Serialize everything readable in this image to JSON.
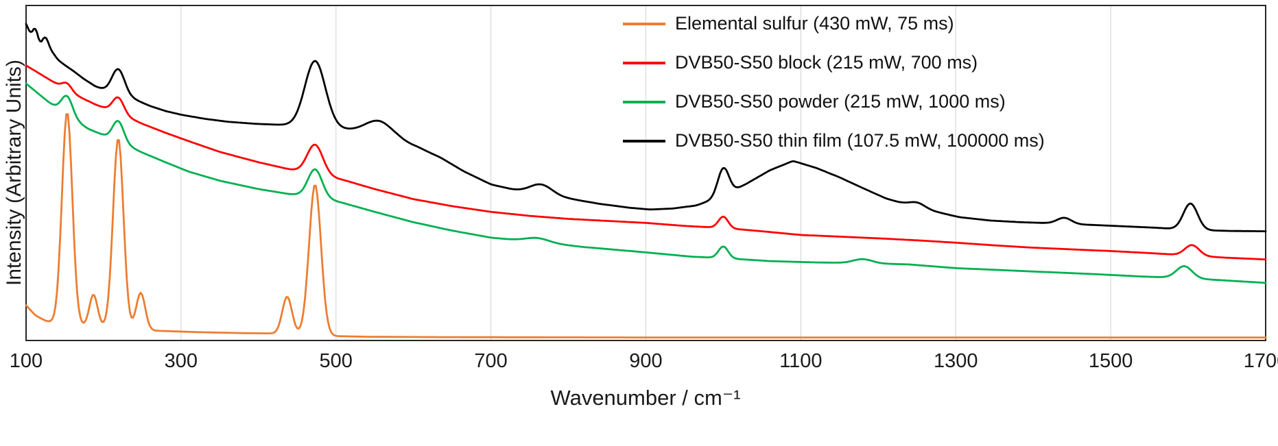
{
  "chart_data": {
    "type": "line",
    "chart_kind": "raman-spectra-overlay",
    "title": "",
    "xlabel": "Wavenumber / cm⁻¹",
    "ylabel": "Intensity (Arbitrary Units)",
    "xlim": [
      100,
      1700
    ],
    "x_ticks": [
      100,
      300,
      500,
      700,
      900,
      1100,
      1300,
      1500,
      1700
    ],
    "ylim": [
      0,
      1
    ],
    "y_ticks": [],
    "grid": "vertical gridlines only",
    "grid_color": "#d9d9d9",
    "axis_color": "#262626",
    "legend_position": "top-right inside plot",
    "intensity_note": "y values are normalized arbitrary intensity (0 = x-axis, 1 = top of plot); each spectrum = interpolated baseline points [wavenumber, intensity] plus Gaussian peaks {center cm⁻¹, height, sigma cm⁻¹}",
    "series": [
      {
        "name": "Elemental sulfur (430 mW, 75 ms)",
        "color": "#ED7D31",
        "baseline": [
          [
            100,
            0.105
          ],
          [
            112,
            0.075
          ],
          [
            126,
            0.058
          ],
          [
            140,
            0.05
          ],
          [
            172,
            0.044
          ],
          [
            205,
            0.04
          ],
          [
            236,
            0.034
          ],
          [
            270,
            0.029
          ],
          [
            320,
            0.025
          ],
          [
            380,
            0.022
          ],
          [
            420,
            0.021
          ],
          [
            452,
            0.019
          ],
          [
            500,
            0.013
          ],
          [
            545,
            0.011
          ],
          [
            640,
            0.01
          ],
          [
            900,
            0.009
          ],
          [
            1300,
            0.009
          ],
          [
            1700,
            0.009
          ]
        ],
        "peaks": [
          {
            "center": 153,
            "height": 0.655,
            "sigma": 6.5
          },
          {
            "center": 187,
            "height": 0.1,
            "sigma": 5
          },
          {
            "center": 219,
            "height": 0.585,
            "sigma": 6.5
          },
          {
            "center": 248,
            "height": 0.115,
            "sigma": 5.5
          },
          {
            "center": 437,
            "height": 0.115,
            "sigma": 6
          },
          {
            "center": 473,
            "height": 0.46,
            "sigma": 7.5
          }
        ]
      },
      {
        "name": "DVB50-S50 block (215 mW, 700 ms)",
        "color": "#FF0000",
        "baseline": [
          [
            100,
            0.821
          ],
          [
            130,
            0.779
          ],
          [
            160,
            0.737
          ],
          [
            190,
            0.704
          ],
          [
            220,
            0.678
          ],
          [
            250,
            0.647
          ],
          [
            280,
            0.62
          ],
          [
            310,
            0.595
          ],
          [
            350,
            0.563
          ],
          [
            400,
            0.532
          ],
          [
            440,
            0.511
          ],
          [
            475,
            0.497
          ],
          [
            510,
            0.479
          ],
          [
            550,
            0.452
          ],
          [
            600,
            0.422
          ],
          [
            650,
            0.401
          ],
          [
            700,
            0.384
          ],
          [
            750,
            0.372
          ],
          [
            800,
            0.363
          ],
          [
            850,
            0.357
          ],
          [
            900,
            0.351
          ],
          [
            950,
            0.342
          ],
          [
            1000,
            0.336
          ],
          [
            1050,
            0.326
          ],
          [
            1100,
            0.315
          ],
          [
            1150,
            0.31
          ],
          [
            1200,
            0.305
          ],
          [
            1250,
            0.299
          ],
          [
            1300,
            0.292
          ],
          [
            1350,
            0.284
          ],
          [
            1400,
            0.277
          ],
          [
            1450,
            0.272
          ],
          [
            1500,
            0.267
          ],
          [
            1550,
            0.261
          ],
          [
            1600,
            0.254
          ],
          [
            1650,
            0.247
          ],
          [
            1700,
            0.242
          ]
        ],
        "peaks": [
          {
            "center": 153,
            "height": 0.022,
            "sigma": 6
          },
          {
            "center": 219,
            "height": 0.048,
            "sigma": 7
          },
          {
            "center": 473,
            "height": 0.088,
            "sigma": 10
          },
          {
            "center": 1000,
            "height": 0.035,
            "sigma": 6
          },
          {
            "center": 1605,
            "height": 0.032,
            "sigma": 9
          }
        ]
      },
      {
        "name": "DVB50-S50 powder (215 mW, 1000 ms)",
        "color": "#00B050",
        "baseline": [
          [
            100,
            0.767
          ],
          [
            130,
            0.71
          ],
          [
            155,
            0.67
          ],
          [
            180,
            0.632
          ],
          [
            220,
            0.594
          ],
          [
            250,
            0.561
          ],
          [
            280,
            0.532
          ],
          [
            310,
            0.504
          ],
          [
            350,
            0.477
          ],
          [
            400,
            0.452
          ],
          [
            440,
            0.437
          ],
          [
            475,
            0.43
          ],
          [
            510,
            0.41
          ],
          [
            550,
            0.384
          ],
          [
            600,
            0.353
          ],
          [
            650,
            0.328
          ],
          [
            700,
            0.307
          ],
          [
            760,
            0.294
          ],
          [
            820,
            0.279
          ],
          [
            900,
            0.263
          ],
          [
            960,
            0.25
          ],
          [
            1000,
            0.246
          ],
          [
            1060,
            0.237
          ],
          [
            1120,
            0.233
          ],
          [
            1180,
            0.231
          ],
          [
            1240,
            0.227
          ],
          [
            1300,
            0.216
          ],
          [
            1360,
            0.21
          ],
          [
            1420,
            0.204
          ],
          [
            1480,
            0.198
          ],
          [
            1540,
            0.191
          ],
          [
            1590,
            0.187
          ],
          [
            1650,
            0.179
          ],
          [
            1700,
            0.172
          ]
        ],
        "peaks": [
          {
            "center": 153,
            "height": 0.058,
            "sigma": 7
          },
          {
            "center": 219,
            "height": 0.062,
            "sigma": 7
          },
          {
            "center": 473,
            "height": 0.082,
            "sigma": 9
          },
          {
            "center": 760,
            "height": 0.012,
            "sigma": 15
          },
          {
            "center": 1000,
            "height": 0.036,
            "sigma": 6
          },
          {
            "center": 1180,
            "height": 0.012,
            "sigma": 12
          },
          {
            "center": 1595,
            "height": 0.036,
            "sigma": 10
          }
        ]
      },
      {
        "name": "DVB50-S50 thin film (107.5 mW, 100000 ms)",
        "color": "#000000",
        "baseline": [
          [
            100,
            0.945
          ],
          [
            106,
            0.915
          ],
          [
            112,
            0.938
          ],
          [
            118,
            0.885
          ],
          [
            125,
            0.912
          ],
          [
            132,
            0.868
          ],
          [
            141,
            0.838
          ],
          [
            150,
            0.822
          ],
          [
            162,
            0.803
          ],
          [
            175,
            0.78
          ],
          [
            190,
            0.758
          ],
          [
            205,
            0.745
          ],
          [
            222,
            0.735
          ],
          [
            240,
            0.72
          ],
          [
            260,
            0.7
          ],
          [
            280,
            0.685
          ],
          [
            300,
            0.674
          ],
          [
            330,
            0.662
          ],
          [
            360,
            0.653
          ],
          [
            395,
            0.647
          ],
          [
            425,
            0.644
          ],
          [
            455,
            0.642
          ],
          [
            475,
            0.641
          ],
          [
            495,
            0.638
          ],
          [
            520,
            0.625
          ],
          [
            545,
            0.61
          ],
          [
            580,
            0.596
          ],
          [
            605,
            0.578
          ],
          [
            635,
            0.546
          ],
          [
            665,
            0.505
          ],
          [
            700,
            0.466
          ],
          [
            730,
            0.45
          ],
          [
            765,
            0.436
          ],
          [
            800,
            0.424
          ],
          [
            840,
            0.408
          ],
          [
            880,
            0.396
          ],
          [
            905,
            0.391
          ],
          [
            935,
            0.394
          ],
          [
            965,
            0.403
          ],
          [
            1000,
            0.432
          ],
          [
            1030,
            0.468
          ],
          [
            1060,
            0.508
          ],
          [
            1090,
            0.536
          ],
          [
            1120,
            0.515
          ],
          [
            1150,
            0.487
          ],
          [
            1180,
            0.455
          ],
          [
            1210,
            0.424
          ],
          [
            1245,
            0.4
          ],
          [
            1275,
            0.384
          ],
          [
            1305,
            0.368
          ],
          [
            1345,
            0.358
          ],
          [
            1385,
            0.353
          ],
          [
            1425,
            0.35
          ],
          [
            1465,
            0.346
          ],
          [
            1505,
            0.342
          ],
          [
            1555,
            0.337
          ],
          [
            1605,
            0.33
          ],
          [
            1655,
            0.327
          ],
          [
            1700,
            0.326
          ]
        ],
        "peaks": [
          {
            "center": 219,
            "height": 0.075,
            "sigma": 8
          },
          {
            "center": 473,
            "height": 0.195,
            "sigma": 13
          },
          {
            "center": 555,
            "height": 0.05,
            "sigma": 18
          },
          {
            "center": 765,
            "height": 0.03,
            "sigma": 14
          },
          {
            "center": 1000,
            "height": 0.085,
            "sigma": 7
          },
          {
            "center": 1250,
            "height": 0.015,
            "sigma": 10
          },
          {
            "center": 1440,
            "height": 0.018,
            "sigma": 9
          },
          {
            "center": 1603,
            "height": 0.08,
            "sigma": 9
          }
        ]
      }
    ]
  }
}
